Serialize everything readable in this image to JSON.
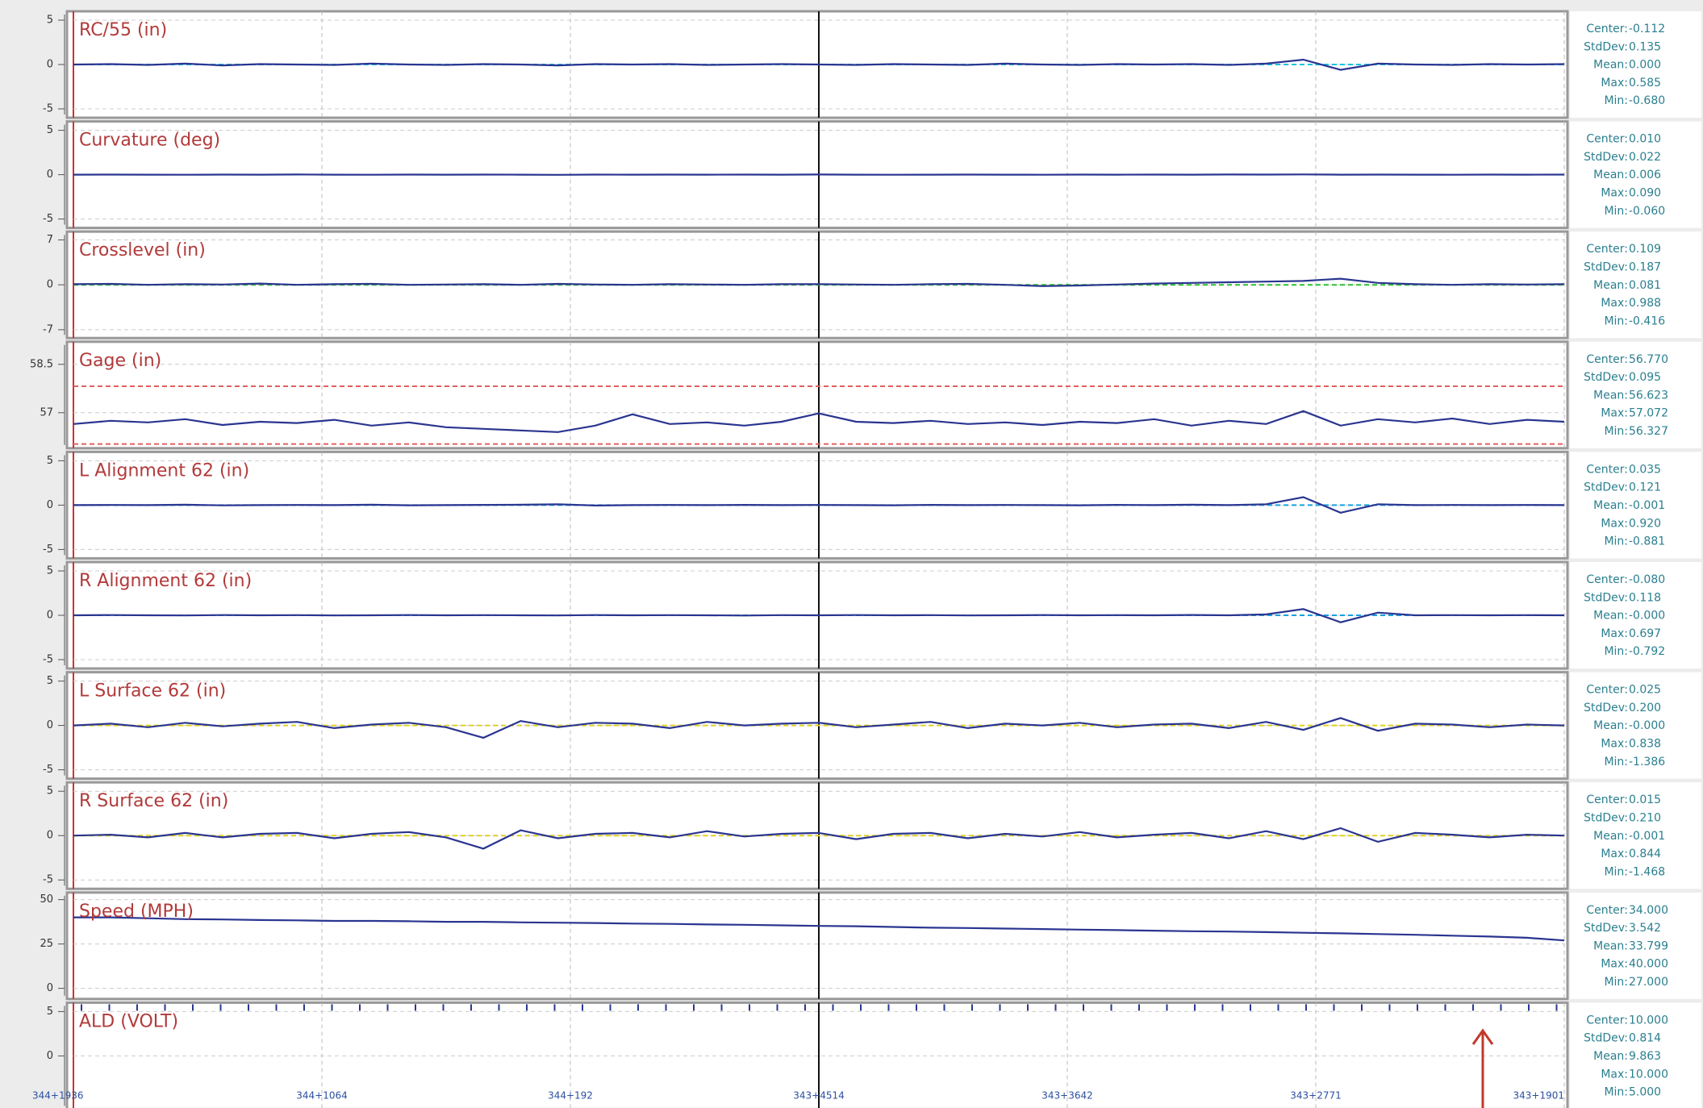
{
  "chart_data": [
    {
      "type": "line",
      "title": "RC/55 (in)",
      "ylim": [
        -6,
        6
      ],
      "yticks": [
        -5,
        0,
        5
      ],
      "ref_lines": [
        {
          "value": 0,
          "color": "#19c3e0"
        }
      ],
      "series": [
        {
          "color": "#2a3590",
          "values": [
            0,
            0.05,
            -0.05,
            0.1,
            -0.1,
            0.05,
            0,
            -0.05,
            0.1,
            0,
            -0.05,
            0.05,
            0,
            -0.1,
            0.05,
            0,
            0.05,
            -0.05,
            0,
            0.05,
            0,
            -0.05,
            0.05,
            0,
            -0.05,
            0.1,
            0,
            -0.05,
            0.05,
            0,
            0.05,
            -0.05,
            0.1,
            0.55,
            -0.6,
            0.1,
            0,
            -0.05,
            0.05,
            0,
            0.05
          ]
        }
      ],
      "stats": [
        {
          "label": "Center:",
          "value": "-0.112"
        },
        {
          "label": "StdDev:",
          "value": "0.135"
        },
        {
          "label": "Mean:",
          "value": "0.000"
        },
        {
          "label": "Max:",
          "value": "0.585"
        },
        {
          "label": "Min:",
          "value": "-0.680"
        }
      ]
    },
    {
      "type": "line",
      "title": "Curvature (deg)",
      "ylim": [
        -6,
        6
      ],
      "yticks": [
        -5,
        0,
        5
      ],
      "ref_lines": [],
      "series": [
        {
          "color": "#2a3590",
          "values": [
            0,
            0.01,
            0,
            -0.01,
            0.01,
            0,
            0.02,
            0,
            -0.01,
            0.01,
            0,
            0.01,
            0,
            -0.02,
            0.01,
            0,
            0.01,
            0,
            0.01,
            0,
            0.02,
            0,
            -0.01,
            0,
            0.01,
            0,
            -0.01,
            0.01,
            0,
            0.01,
            0,
            0.02,
            0.01,
            0.03,
            0,
            0.01,
            0,
            -0.01,
            0.01,
            0,
            0.01
          ]
        }
      ],
      "stats": [
        {
          "label": "Center:",
          "value": "0.010"
        },
        {
          "label": "StdDev:",
          "value": "0.022"
        },
        {
          "label": "Mean:",
          "value": "0.006"
        },
        {
          "label": "Max:",
          "value": "0.090"
        },
        {
          "label": "Min:",
          "value": "-0.060"
        }
      ]
    },
    {
      "type": "line",
      "title": "Crosslevel (in)",
      "ylim": [
        -8.3,
        8.3
      ],
      "yticks": [
        -7,
        0,
        7
      ],
      "ref_lines": [
        {
          "value": 0,
          "color": "#2fc02f"
        }
      ],
      "series": [
        {
          "color": "#2a3590",
          "values": [
            0.1,
            0.15,
            0,
            0.1,
            0.05,
            0.2,
            0,
            0.1,
            0.15,
            0,
            0.05,
            0.1,
            0,
            0.15,
            0.05,
            0,
            0.1,
            0.05,
            0,
            0.1,
            0.1,
            0.05,
            0,
            0.1,
            0.15,
            0,
            -0.2,
            -0.1,
            0.05,
            0.2,
            0.3,
            0.4,
            0.5,
            0.6,
            0.95,
            0.3,
            0.1,
            0,
            0.1,
            0.05,
            0.1
          ]
        }
      ],
      "stats": [
        {
          "label": "Center:",
          "value": "0.109"
        },
        {
          "label": "StdDev:",
          "value": "0.187"
        },
        {
          "label": "Mean:",
          "value": "0.081"
        },
        {
          "label": "Max:",
          "value": "0.988"
        },
        {
          "label": "Min:",
          "value": "-0.416"
        }
      ]
    },
    {
      "type": "line",
      "title": "Gage (in)",
      "ylim": [
        55.9,
        59.2
      ],
      "yticks": [
        57,
        58.5
      ],
      "ref_lines": [
        {
          "value": 57.82,
          "color": "#e06060"
        },
        {
          "value": 56.03,
          "color": "#e06060"
        }
      ],
      "series": [
        {
          "color": "#2a3590",
          "values": [
            56.65,
            56.75,
            56.7,
            56.8,
            56.62,
            56.72,
            56.68,
            56.78,
            56.6,
            56.7,
            56.55,
            56.5,
            56.45,
            56.4,
            56.6,
            56.95,
            56.65,
            56.7,
            56.6,
            56.72,
            56.98,
            56.72,
            56.68,
            56.75,
            56.65,
            56.7,
            56.62,
            56.72,
            56.68,
            56.8,
            56.6,
            56.75,
            56.65,
            57.05,
            56.6,
            56.8,
            56.7,
            56.82,
            56.65,
            56.78,
            56.72
          ]
        }
      ],
      "stats": [
        {
          "label": "Center:",
          "value": "56.770"
        },
        {
          "label": "StdDev:",
          "value": "0.095"
        },
        {
          "label": "Mean:",
          "value": "56.623"
        },
        {
          "label": "Max:",
          "value": "57.072"
        },
        {
          "label": "Min:",
          "value": "56.327"
        }
      ]
    },
    {
      "type": "line",
      "title": "L Alignment 62 (in)",
      "ylim": [
        -6,
        6
      ],
      "yticks": [
        -5,
        0,
        5
      ],
      "ref_lines": [
        {
          "value": 0,
          "color": "#19a0e0"
        }
      ],
      "series": [
        {
          "color": "#2a3590",
          "values": [
            0,
            0.02,
            0,
            0.05,
            -0.03,
            0,
            0.02,
            0,
            0.05,
            -0.02,
            0,
            0.03,
            0.05,
            0.1,
            -0.05,
            0,
            0.02,
            0,
            0.03,
            0,
            0.02,
            0,
            -0.02,
            0.03,
            0,
            0.02,
            0,
            -0.02,
            0.03,
            0,
            0.05,
            0,
            0.1,
            0.9,
            -0.85,
            0.1,
            0,
            0.02,
            0,
            0.02,
            0
          ]
        }
      ],
      "stats": [
        {
          "label": "Center:",
          "value": "0.035"
        },
        {
          "label": "StdDev:",
          "value": "0.121"
        },
        {
          "label": "Mean:",
          "value": "-0.001"
        },
        {
          "label": "Max:",
          "value": "0.920"
        },
        {
          "label": "Min:",
          "value": "-0.881"
        }
      ]
    },
    {
      "type": "line",
      "title": "R Alignment 62 (in)",
      "ylim": [
        -6,
        6
      ],
      "yticks": [
        -5,
        0,
        5
      ],
      "ref_lines": [
        {
          "value": 0,
          "color": "#19a0e0"
        }
      ],
      "series": [
        {
          "color": "#2a3590",
          "values": [
            0,
            0.03,
            0,
            -0.02,
            0.03,
            0,
            0.02,
            -0.02,
            0,
            0.03,
            0,
            0.02,
            0,
            -0.02,
            0.03,
            0,
            0.02,
            0,
            -0.03,
            0.02,
            0,
            0.03,
            0,
            0.02,
            -0.02,
            0,
            0.03,
            0,
            0.02,
            0,
            0.04,
            0,
            0.1,
            0.7,
            -0.79,
            0.3,
            0,
            0.02,
            0,
            0.02,
            0
          ]
        }
      ],
      "stats": [
        {
          "label": "Center:",
          "value": "-0.080"
        },
        {
          "label": "StdDev:",
          "value": "0.118"
        },
        {
          "label": "Mean:",
          "value": "-0.000"
        },
        {
          "label": "Max:",
          "value": "0.697"
        },
        {
          "label": "Min:",
          "value": "-0.792"
        }
      ]
    },
    {
      "type": "line",
      "title": "L Surface 62 (in)",
      "ylim": [
        -6,
        6
      ],
      "yticks": [
        -5,
        0,
        5
      ],
      "ref_lines": [
        {
          "value": 0,
          "color": "#e0d020"
        }
      ],
      "series": [
        {
          "color": "#2a3590",
          "values": [
            0,
            0.2,
            -0.2,
            0.3,
            -0.1,
            0.2,
            0.4,
            -0.3,
            0.1,
            0.3,
            -0.2,
            -1.39,
            0.5,
            -0.2,
            0.3,
            0.2,
            -0.3,
            0.4,
            0,
            0.2,
            0.3,
            -0.2,
            0.1,
            0.4,
            -0.3,
            0.2,
            0,
            0.3,
            -0.2,
            0.1,
            0.2,
            -0.3,
            0.4,
            -0.5,
            0.84,
            -0.6,
            0.2,
            0.1,
            -0.2,
            0.1,
            0
          ]
        }
      ],
      "stats": [
        {
          "label": "Center:",
          "value": "0.025"
        },
        {
          "label": "StdDev:",
          "value": "0.200"
        },
        {
          "label": "Mean:",
          "value": "-0.000"
        },
        {
          "label": "Max:",
          "value": "0.838"
        },
        {
          "label": "Min:",
          "value": "-1.386"
        }
      ]
    },
    {
      "type": "line",
      "title": "R Surface 62 (in)",
      "ylim": [
        -6,
        6
      ],
      "yticks": [
        -5,
        0,
        5
      ],
      "ref_lines": [
        {
          "value": 0,
          "color": "#e0d020"
        }
      ],
      "series": [
        {
          "color": "#2a3590",
          "values": [
            0,
            0.1,
            -0.2,
            0.3,
            -0.2,
            0.2,
            0.3,
            -0.3,
            0.2,
            0.4,
            -0.2,
            -1.47,
            0.6,
            -0.3,
            0.2,
            0.3,
            -0.2,
            0.5,
            -0.1,
            0.2,
            0.3,
            -0.4,
            0.2,
            0.3,
            -0.3,
            0.2,
            -0.1,
            0.4,
            -0.2,
            0.1,
            0.3,
            -0.3,
            0.5,
            -0.4,
            0.84,
            -0.7,
            0.3,
            0.1,
            -0.2,
            0.1,
            0
          ]
        }
      ],
      "stats": [
        {
          "label": "Center:",
          "value": "0.015"
        },
        {
          "label": "StdDev:",
          "value": "0.210"
        },
        {
          "label": "Mean:",
          "value": "-0.001"
        },
        {
          "label": "Max:",
          "value": "0.844"
        },
        {
          "label": "Min:",
          "value": "-1.468"
        }
      ]
    },
    {
      "type": "line",
      "title": "Speed (MPH)",
      "ylim": [
        -6,
        54
      ],
      "yticks": [
        0,
        25,
        50
      ],
      "ref_lines": [],
      "series": [
        {
          "color": "#2a3590",
          "values": [
            40,
            40,
            39.5,
            39,
            38.8,
            38.5,
            38.3,
            38,
            38,
            37.8,
            37.5,
            37.5,
            37.2,
            37,
            36.8,
            36.5,
            36.3,
            36,
            35.8,
            35.5,
            35.2,
            35,
            34.6,
            34.2,
            34,
            33.7,
            33.4,
            33.1,
            32.8,
            32.5,
            32.2,
            32,
            31.7,
            31.3,
            31,
            30.6,
            30.2,
            29.7,
            29.2,
            28.5,
            27
          ]
        }
      ],
      "stats": [
        {
          "label": "Center:",
          "value": "34.000"
        },
        {
          "label": "StdDev:",
          "value": "3.542"
        },
        {
          "label": "Mean:",
          "value": "33.799"
        },
        {
          "label": "Max:",
          "value": "40.000"
        },
        {
          "label": "Min:",
          "value": "27.000"
        }
      ]
    },
    {
      "type": "ticks",
      "title": "ALD (VOLT)",
      "ylim": [
        -6,
        6
      ],
      "yticks": [
        0,
        5
      ],
      "ref_lines": [],
      "series": [],
      "stats": [
        {
          "label": "Center:",
          "value": "10.000"
        },
        {
          "label": "StdDev:",
          "value": "0.814"
        },
        {
          "label": "Mean:",
          "value": "9.863"
        },
        {
          "label": "Max:",
          "value": "10.000"
        },
        {
          "label": "Min:",
          "value": "5.000"
        }
      ]
    }
  ],
  "x_axis_labels": [
    "344+1936",
    "344+1064",
    "344+192",
    "343+4514",
    "343+3642",
    "343+2771",
    "343+1901"
  ]
}
